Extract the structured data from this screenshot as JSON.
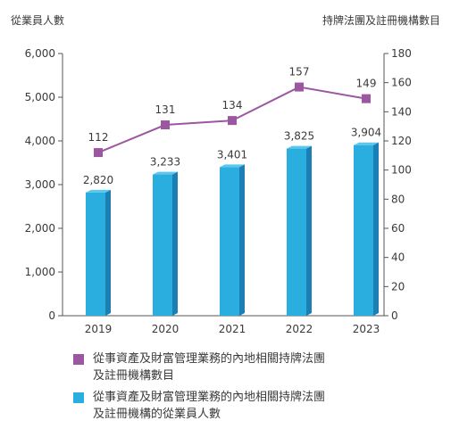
{
  "chart_data": {
    "type": "bar+line",
    "categories": [
      "2019",
      "2020",
      "2021",
      "2022",
      "2023"
    ],
    "left_axis": {
      "title": "從業員人數",
      "ylim": [
        0,
        6000
      ],
      "ticks": [
        0,
        1000,
        2000,
        3000,
        4000,
        5000,
        6000
      ],
      "tick_labels": [
        "0",
        "1,000",
        "2,000",
        "3,000",
        "4,000",
        "5,000",
        "6,000"
      ]
    },
    "right_axis": {
      "title": "持牌法團及註冊機構數目",
      "ylim": [
        0,
        180
      ],
      "ticks": [
        0,
        20,
        40,
        60,
        80,
        100,
        120,
        140,
        160,
        180
      ],
      "tick_labels": [
        "0",
        "20",
        "40",
        "60",
        "80",
        "100",
        "120",
        "140",
        "160",
        "180"
      ]
    },
    "series": [
      {
        "name": "從事資產及財富管理業務的內地相關持牌法團及註冊機構的從業員人數",
        "kind": "bar",
        "axis": "left",
        "values": [
          2820,
          3233,
          3401,
          3825,
          3904
        ],
        "labels": [
          "2,820",
          "3,233",
          "3,401",
          "3,825",
          "3,904"
        ],
        "color": "#29aedf",
        "side_color": "#1b7fb3"
      },
      {
        "name": "從事資產及財富管理業務的內地相關持牌法團及註冊機構數目",
        "kind": "line",
        "axis": "right",
        "values": [
          112,
          131,
          134,
          157,
          149
        ],
        "labels": [
          "112",
          "131",
          "134",
          "157",
          "149"
        ],
        "color": "#9b58a0"
      }
    ],
    "legend": {
      "placement": "bottom",
      "line_text_1": "從事資產及財富管理業務的內地相關持牌法團",
      "line_text_2": "及註冊機構數目",
      "bar_text_1": "從事資產及財富管理業務的內地相關持牌法團",
      "bar_text_2": "及註冊機構的從業員人數"
    },
    "grid": false,
    "axis_color": "#555555"
  }
}
